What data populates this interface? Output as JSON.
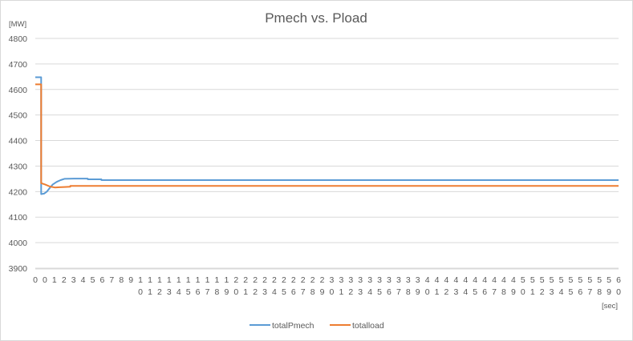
{
  "chart_data": {
    "type": "line",
    "title": "Pmech vs. Pload",
    "y_unit_label": "[MW]",
    "x_unit_label": "[sec]",
    "ylim": [
      3900,
      4800
    ],
    "yticks": [
      3900,
      4000,
      4100,
      4200,
      4300,
      4400,
      4500,
      4600,
      4700,
      4800
    ],
    "xlim": [
      0,
      60
    ],
    "x_tick_top": [
      "0",
      "0",
      "1",
      "2",
      "3",
      "4",
      "5",
      "6",
      "7",
      "8",
      "9",
      "1",
      "1",
      "1",
      "1",
      "1",
      "1",
      "1",
      "1",
      "1",
      "1",
      "2",
      "2",
      "2",
      "2",
      "2",
      "2",
      "2",
      "2",
      "2",
      "2",
      "3",
      "3",
      "3",
      "3",
      "3",
      "3",
      "3",
      "3",
      "3",
      "3",
      "4",
      "4",
      "4",
      "4",
      "4",
      "4",
      "4",
      "4",
      "4",
      "4",
      "5",
      "5",
      "5",
      "5",
      "5",
      "5",
      "5",
      "5",
      "5",
      "5",
      "6"
    ],
    "x_tick_bottom": [
      "",
      "",
      "",
      "",
      "",
      "",
      "",
      "",
      "",
      "",
      "",
      "0",
      "1",
      "2",
      "3",
      "4",
      "5",
      "6",
      "7",
      "8",
      "9",
      "0",
      "1",
      "2",
      "3",
      "4",
      "5",
      "6",
      "7",
      "8",
      "9",
      "0",
      "1",
      "2",
      "3",
      "4",
      "5",
      "6",
      "7",
      "8",
      "9",
      "0",
      "1",
      "2",
      "3",
      "4",
      "5",
      "6",
      "7",
      "8",
      "9",
      "0",
      "1",
      "2",
      "3",
      "4",
      "5",
      "6",
      "7",
      "8",
      "9",
      "0"
    ],
    "grid": "horizontal",
    "legend_position": "bottom",
    "series": [
      {
        "name": "totalPmech",
        "color": "#5b9bd5",
        "points": [
          [
            0,
            4648
          ],
          [
            0.6,
            4648
          ],
          [
            0.6,
            4190
          ],
          [
            0.9,
            4192
          ],
          [
            1.2,
            4200
          ],
          [
            1.5,
            4215
          ],
          [
            1.8,
            4228
          ],
          [
            2.2,
            4238
          ],
          [
            2.6,
            4245
          ],
          [
            3.0,
            4250
          ],
          [
            4.0,
            4251
          ],
          [
            5.4,
            4251
          ],
          [
            5.4,
            4248
          ],
          [
            6.8,
            4248
          ],
          [
            6.8,
            4245
          ],
          [
            60,
            4245
          ]
        ]
      },
      {
        "name": "totalload",
        "color": "#ed7d31",
        "points": [
          [
            0,
            4620
          ],
          [
            0.6,
            4620
          ],
          [
            0.6,
            4233
          ],
          [
            1.0,
            4228
          ],
          [
            1.5,
            4220
          ],
          [
            2.0,
            4216
          ],
          [
            2.5,
            4217
          ],
          [
            3.0,
            4218
          ],
          [
            3.6,
            4219
          ],
          [
            3.6,
            4222
          ],
          [
            60,
            4222
          ]
        ]
      }
    ]
  }
}
